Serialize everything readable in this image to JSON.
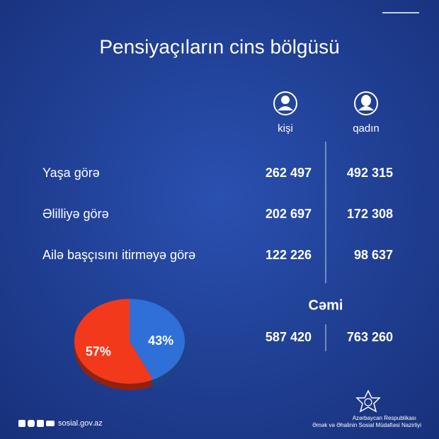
{
  "title": "Pensiyaçıların cins bölgüsü",
  "columns": [
    "kişi",
    "qadın"
  ],
  "rows": [
    {
      "label": "Yaşa görə",
      "values": [
        "262 497",
        "492 315"
      ]
    },
    {
      "label": "Əlilliyə görə",
      "values": [
        "202 697",
        "172 308"
      ]
    },
    {
      "label": "Ailə başçısını itirməyə görə",
      "values": [
        "122 226",
        "98 637"
      ]
    }
  ],
  "total": {
    "label": "Cəmi",
    "values": [
      "587 420",
      "763 260"
    ]
  },
  "chart_data": {
    "type": "pie",
    "values": [
      43,
      57
    ],
    "value_labels": [
      "43%",
      "57%"
    ],
    "colors": [
      "#2f6fd8",
      "#f2391b"
    ]
  },
  "footer": {
    "website": "sosial.gov.az",
    "org_line1": "Azərbaycan Respublikası",
    "org_line2": "Əmək və Əhalinin Sosial Müdafiəsi Nazirliyi"
  }
}
